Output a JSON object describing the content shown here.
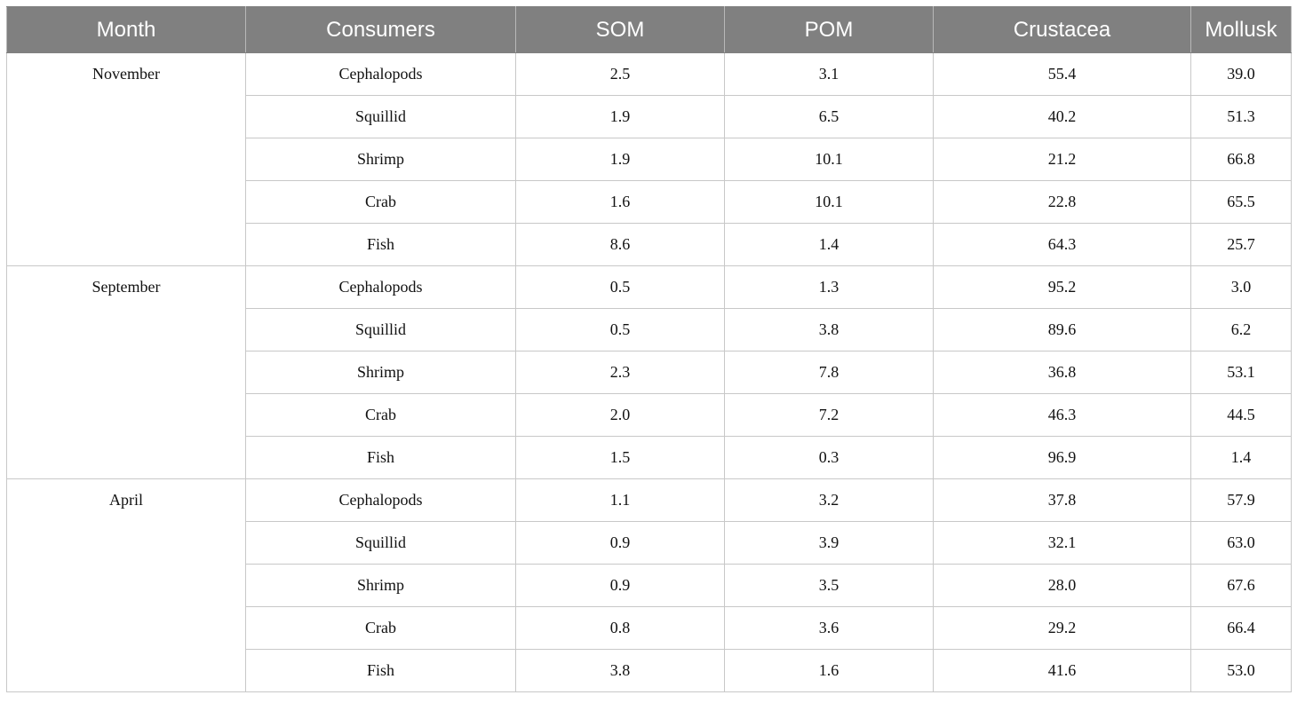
{
  "table": {
    "headers": [
      "Month",
      "Consumers",
      "SOM",
      "POM",
      "Crustacea",
      "Mollusk"
    ],
    "rows": [
      [
        "November",
        "Cephalopods",
        "2.5",
        "3.1",
        "55.4",
        "39.0"
      ],
      [
        "",
        "Squillid",
        "1.9",
        "6.5",
        "40.2",
        "51.3"
      ],
      [
        "",
        "Shrimp",
        "1.9",
        "10.1",
        "21.2",
        "66.8"
      ],
      [
        "",
        "Crab",
        "1.6",
        "10.1",
        "22.8",
        "65.5"
      ],
      [
        "",
        "Fish",
        "8.6",
        "1.4",
        "64.3",
        "25.7"
      ],
      [
        "September",
        "Cephalopods",
        "0.5",
        "1.3",
        "95.2",
        "3.0"
      ],
      [
        "",
        "Squillid",
        "0.5",
        "3.8",
        "89.6",
        "6.2"
      ],
      [
        "",
        "Shrimp",
        "2.3",
        "7.8",
        "36.8",
        "53.1"
      ],
      [
        "",
        "Crab",
        "2.0",
        "7.2",
        "46.3",
        "44.5"
      ],
      [
        "",
        "Fish",
        "1.5",
        "0.3",
        "96.9",
        "1.4"
      ],
      [
        "April",
        "Cephalopods",
        "1.1",
        "3.2",
        "37.8",
        "57.9"
      ],
      [
        "",
        "Squillid",
        "0.9",
        "3.9",
        "32.1",
        "63.0"
      ],
      [
        "",
        "Shrimp",
        "0.9",
        "3.5",
        "28.0",
        "67.6"
      ],
      [
        "",
        "Crab",
        "0.8",
        "3.6",
        "29.2",
        "66.4"
      ],
      [
        "",
        "Fish",
        "3.8",
        "1.6",
        "41.6",
        "53.0"
      ]
    ]
  }
}
